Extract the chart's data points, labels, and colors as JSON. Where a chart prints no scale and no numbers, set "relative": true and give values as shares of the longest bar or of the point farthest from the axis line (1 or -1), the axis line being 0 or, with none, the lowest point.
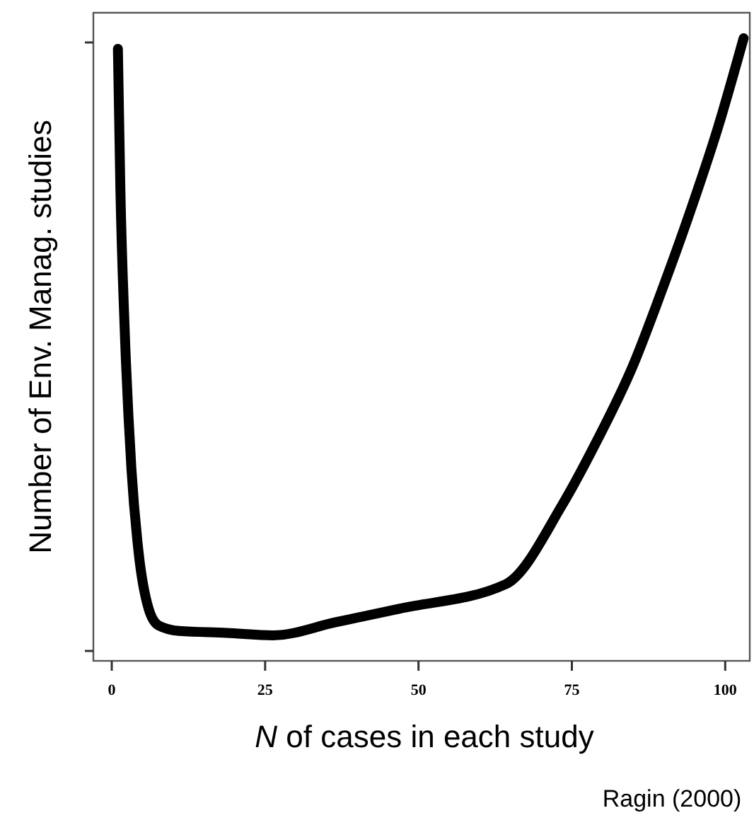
{
  "chart_data": {
    "type": "line",
    "relative": true,
    "xlabel": "N of cases in each study",
    "ylabel": "Number of  Env. Manag. studies",
    "annotations": [
      "Ragin (2000)"
    ],
    "xlim": [
      -3,
      104
    ],
    "xticks": [
      0,
      25,
      50,
      75,
      100
    ],
    "marker": "none",
    "line_style": "solid",
    "series": [
      {
        "color": "#000000",
        "x": [
          1,
          1.4,
          2.1,
          3.2,
          4.4,
          6,
          7.6,
          11,
          18.7,
          26.3,
          36.5,
          47,
          64.2,
          73.4,
          78.8,
          85,
          89.6,
          94.2,
          98.8,
          103
        ],
        "values": [
          0.983,
          0.759,
          0.534,
          0.309,
          0.172,
          0.084,
          0.057,
          0.048,
          0.045,
          0.041,
          0.062,
          0.084,
          0.123,
          0.25,
          0.348,
          0.475,
          0.593,
          0.719,
          0.856,
          1
        ]
      }
    ]
  }
}
